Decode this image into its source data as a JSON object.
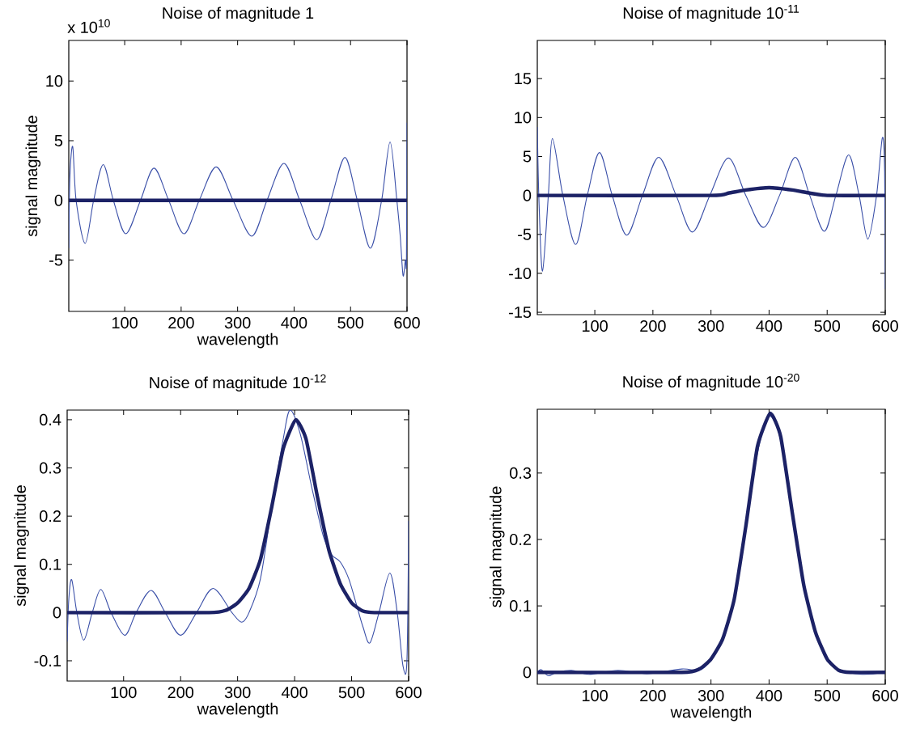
{
  "chart_data": [
    {
      "type": "line",
      "title": "Noise of magnitude 1",
      "xlabel": "wavelength",
      "ylabel": "signal magnitude",
      "annotations": [
        "x 10$^{10}$"
      ],
      "xlim": [
        1,
        600
      ],
      "ylim": [
        -9.3,
        13.4
      ],
      "xticks": [
        100,
        200,
        300,
        400,
        500,
        600
      ],
      "yticks": [
        -5,
        0,
        5,
        10
      ],
      "series": [
        {
          "color": "#3a4fa8",
          "x": [
            1,
            3,
            8,
            14,
            30,
            45,
            62,
            80,
            102,
            128,
            152,
            178,
            205,
            232,
            262,
            292,
            325,
            352,
            382,
            410,
            440,
            465,
            490,
            512,
            535,
            555,
            570,
            582,
            588,
            593,
            597,
            599,
            600
          ],
          "values": [
            -4.0,
            2.0,
            4.5,
            0,
            -3.6,
            0,
            3.0,
            0,
            -2.8,
            0,
            2.7,
            0,
            -2.8,
            0,
            2.8,
            0,
            -3.0,
            0,
            3.1,
            0,
            -3.3,
            0,
            3.6,
            0,
            -4.0,
            0,
            4.9,
            0,
            -3.0,
            -6.3,
            -5.0,
            -5.0,
            6.5
          ]
        },
        {
          "color": "#1c2266",
          "x": [
            1,
            600
          ],
          "values": [
            0,
            0
          ]
        }
      ]
    },
    {
      "type": "line",
      "title": "Noise of magnitude 10$^{-11}$",
      "xlim": [
        1,
        600
      ],
      "ylim": [
        -15.3,
        19.9
      ],
      "xticks": [
        100,
        200,
        300,
        400,
        500,
        600
      ],
      "yticks": [
        -15,
        -10,
        -5,
        0,
        5,
        10,
        15
      ],
      "series": [
        {
          "color": "#3a4fa8",
          "x": [
            1,
            4,
            10,
            20,
            27,
            45,
            67,
            87,
            108,
            130,
            155,
            182,
            210,
            240,
            268,
            298,
            330,
            360,
            390,
            418,
            445,
            470,
            495,
            515,
            537,
            555,
            570,
            585,
            595,
            599,
            600
          ],
          "values": [
            8.8,
            -1,
            -9.7,
            0,
            7.3,
            0,
            -6.3,
            0,
            5.5,
            0,
            -5.1,
            0,
            4.9,
            0,
            -4.7,
            0,
            4.8,
            0,
            -4.1,
            0,
            4.9,
            0,
            -4.6,
            0,
            5.2,
            0,
            -5.6,
            0,
            7.4,
            3,
            -12
          ]
        },
        {
          "color": "#1c2266",
          "x": [
            1,
            300,
            330,
            360,
            400,
            440,
            470,
            500,
            600
          ],
          "values": [
            0,
            0,
            0.3,
            0.7,
            1.0,
            0.7,
            0.3,
            0,
            0
          ]
        }
      ]
    },
    {
      "type": "line",
      "title": "Noise of magnitude 10$^{-12}$",
      "xlabel": "wavelength",
      "ylabel": "signal magnitude",
      "xlim": [
        1,
        600
      ],
      "ylim": [
        -0.142,
        0.42
      ],
      "xticks": [
        100,
        200,
        300,
        400,
        500,
        600
      ],
      "yticks": [
        -0.1,
        0,
        0.1,
        0.2,
        0.3,
        0.4
      ],
      "series": [
        {
          "color": "#3a4fa8",
          "x": [
            1,
            4,
            9,
            18,
            30,
            45,
            60,
            78,
            102,
            122,
            148,
            173,
            200,
            228,
            257,
            290,
            307,
            320,
            340,
            360,
            380,
            392,
            410,
            430,
            450,
            465,
            480,
            495,
            510,
            520,
            532,
            548,
            567,
            580,
            590,
            597,
            600
          ],
          "values": [
            -0.06,
            0.03,
            0.068,
            0,
            -0.057,
            0,
            0.048,
            0,
            -0.047,
            0,
            0.046,
            0,
            -0.047,
            0,
            0.05,
            0,
            -0.02,
            0,
            0.07,
            0.22,
            0.36,
            0.42,
            0.37,
            0.26,
            0.16,
            0.12,
            0.105,
            0.07,
            0.01,
            -0.03,
            -0.063,
            0,
            0.082,
            0,
            -0.11,
            -0.1,
            0.19
          ]
        },
        {
          "color": "#1c2266",
          "x": [
            1,
            250,
            280,
            300,
            320,
            340,
            360,
            380,
            402,
            420,
            440,
            460,
            480,
            500,
            520,
            540,
            600
          ],
          "values": [
            0,
            0,
            0.005,
            0.02,
            0.05,
            0.11,
            0.22,
            0.34,
            0.4,
            0.36,
            0.24,
            0.13,
            0.06,
            0.02,
            0.003,
            0,
            0
          ]
        }
      ]
    },
    {
      "type": "line",
      "title": "Noise of magnitude 10$^{-20}$",
      "xlabel": "wavelength",
      "ylabel": "signal magnitude",
      "xlim": [
        1,
        600
      ],
      "ylim": [
        -0.018,
        0.396
      ],
      "xticks": [
        100,
        200,
        300,
        400,
        500,
        600
      ],
      "yticks": [
        0,
        0.1,
        0.2,
        0.3
      ],
      "series": [
        {
          "color": "#3a4fa8",
          "x": [
            1,
            8,
            20,
            35,
            60,
            90,
            140,
            190,
            250,
            280,
            300,
            320,
            340,
            360,
            380,
            400,
            420,
            440,
            460,
            480,
            500,
            520,
            560,
            600
          ],
          "values": [
            0,
            0.004,
            -0.005,
            0,
            0.003,
            -0.003,
            0.003,
            -0.002,
            0.005,
            0.003,
            0.018,
            0.05,
            0.11,
            0.22,
            0.33,
            0.385,
            0.35,
            0.24,
            0.13,
            0.06,
            0.02,
            0.004,
            -0.003,
            0
          ]
        },
        {
          "color": "#1c2266",
          "x": [
            1,
            250,
            280,
            300,
            320,
            340,
            360,
            380,
            402,
            420,
            440,
            460,
            480,
            500,
            520,
            540,
            600
          ],
          "values": [
            0,
            0,
            0.005,
            0.02,
            0.05,
            0.11,
            0.22,
            0.34,
            0.39,
            0.355,
            0.24,
            0.13,
            0.06,
            0.02,
            0.003,
            0,
            0
          ]
        }
      ]
    }
  ]
}
